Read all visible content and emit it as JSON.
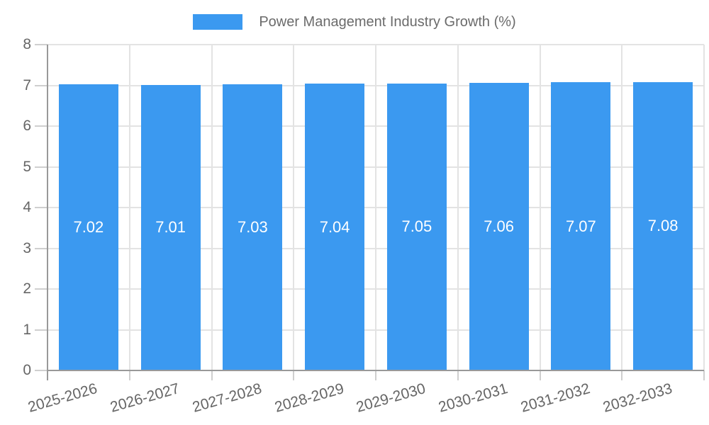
{
  "chart_data": {
    "type": "bar",
    "title": "Power Management Industry Growth (%)",
    "categories": [
      "2025-2026",
      "2026-2027",
      "2027-2028",
      "2028-2029",
      "2029-2030",
      "2030-2031",
      "2031-2032",
      "2032-2033"
    ],
    "values": [
      7.02,
      7.01,
      7.03,
      7.04,
      7.05,
      7.06,
      7.07,
      7.08
    ],
    "value_labels": [
      "7.02",
      "7.01",
      "7.03",
      "7.04",
      "7.05",
      "7.06",
      "7.07",
      "7.08"
    ],
    "y_ticks": [
      0,
      1,
      2,
      3,
      4,
      5,
      6,
      7,
      8
    ],
    "y_tick_labels": [
      "0",
      "1",
      "2",
      "3",
      "4",
      "5",
      "6",
      "7",
      "8"
    ],
    "ylim": [
      0,
      8
    ],
    "grid": true,
    "legend_position": "top",
    "colors": {
      "bar": "#3B99F0",
      "grid": "#E3E3E3",
      "axis": "#999999",
      "tick": "#CFCFCF",
      "tick_label": "#666666",
      "legend_text": "#6B6B6B",
      "bar_label": "#FFFFFF",
      "background": "#FFFFFF"
    }
  }
}
